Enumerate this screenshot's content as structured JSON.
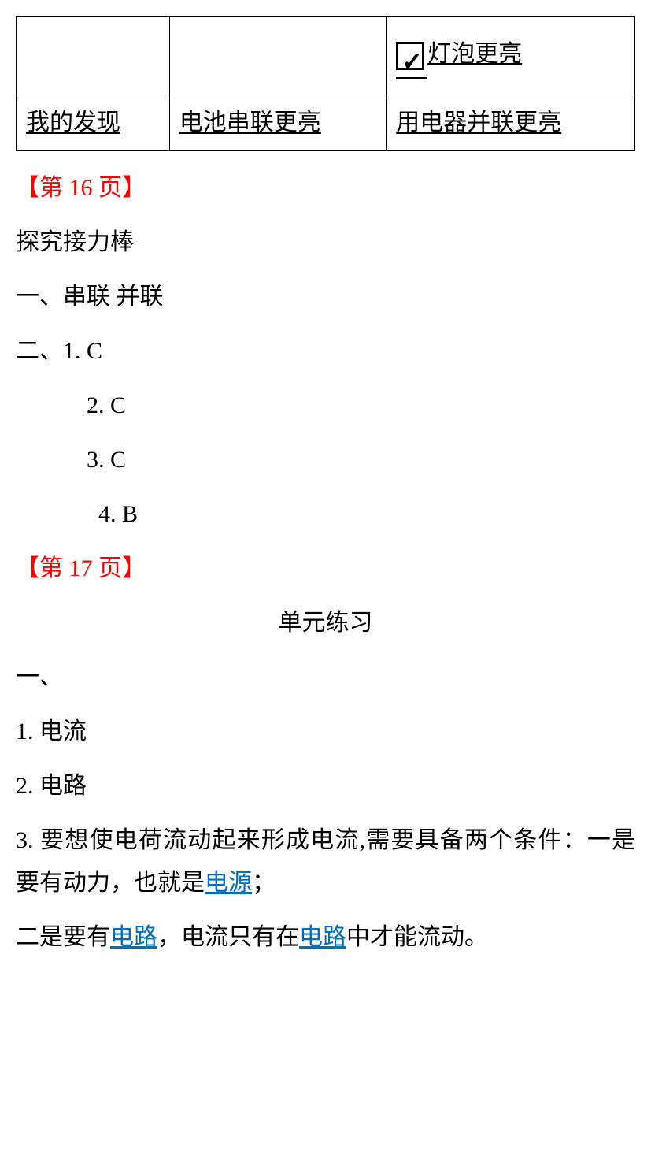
{
  "table": {
    "row1": {
      "cell1": "",
      "cell2": "",
      "cell3_text": "灯泡更亮"
    },
    "row2": {
      "cell1": "我的发现",
      "cell2": "电池串联更亮",
      "cell3": "用电器并联更亮"
    }
  },
  "page16": {
    "marker": "【第 16 页】",
    "title": "探究接力棒",
    "line1": "一、串联  并联",
    "line2": "二、1. C",
    "line3": "2. C",
    "line4": "3. C",
    "line5": "4. B"
  },
  "page17": {
    "marker": "【第 17 页】",
    "title": "单元练习",
    "section1": "一、",
    "item1": "1. 电流",
    "item2": "2. 电路",
    "item3_part1": "3.  要想使电荷流动起来形成电流,需要具备两个条件：一是要有动力，也就是",
    "item3_link1": "电源",
    "item3_part2": "；",
    "item4_part1": "二是要有",
    "item4_link1": "电路",
    "item4_part2": "，电流只有在",
    "item4_link2": "电路",
    "item4_part3": "中才能流动。"
  },
  "colors": {
    "text": "#000000",
    "background": "#ffffff",
    "page_marker": "#ff0000",
    "link": "#0070c0"
  }
}
